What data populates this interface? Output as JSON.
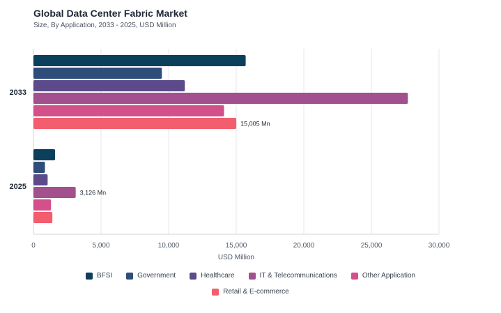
{
  "chart_data": {
    "type": "bar",
    "orientation": "horizontal",
    "title": "Global Data Center Fabric Market",
    "subtitle": "Size, By Application, 2033 - 2025, USD Million",
    "xlabel": "USD Million",
    "ylabel": "",
    "xlim": [
      0,
      30000
    ],
    "xticks": [
      "0",
      "5,000",
      "10,000",
      "15,000",
      "20,000",
      "25,000",
      "30,000"
    ],
    "categories": [
      "2033",
      "2025"
    ],
    "grid": true,
    "legend_position": "bottom",
    "series": [
      {
        "name": "BFSI",
        "color": "#0b3f5c",
        "values": [
          15700,
          1600
        ]
      },
      {
        "name": "Government",
        "color": "#2e4d7b",
        "values": [
          9500,
          850
        ]
      },
      {
        "name": "Healthcare",
        "color": "#5c4a8a",
        "values": [
          11200,
          1050
        ]
      },
      {
        "name": "IT & Telecommunications",
        "color": "#a2508e",
        "values": [
          27700,
          3126
        ]
      },
      {
        "name": "Other Application",
        "color": "#d4508a",
        "values": [
          14100,
          1300
        ]
      },
      {
        "name": "Retail & E-commerce",
        "color": "#f25e6e",
        "values": [
          15005,
          1400
        ]
      }
    ],
    "annotations": [
      {
        "category": "2033",
        "series": "Retail & E-commerce",
        "text": "15,005 Mn"
      },
      {
        "category": "2025",
        "series": "IT & Telecommunications",
        "text": "3,126 Mn"
      }
    ]
  }
}
